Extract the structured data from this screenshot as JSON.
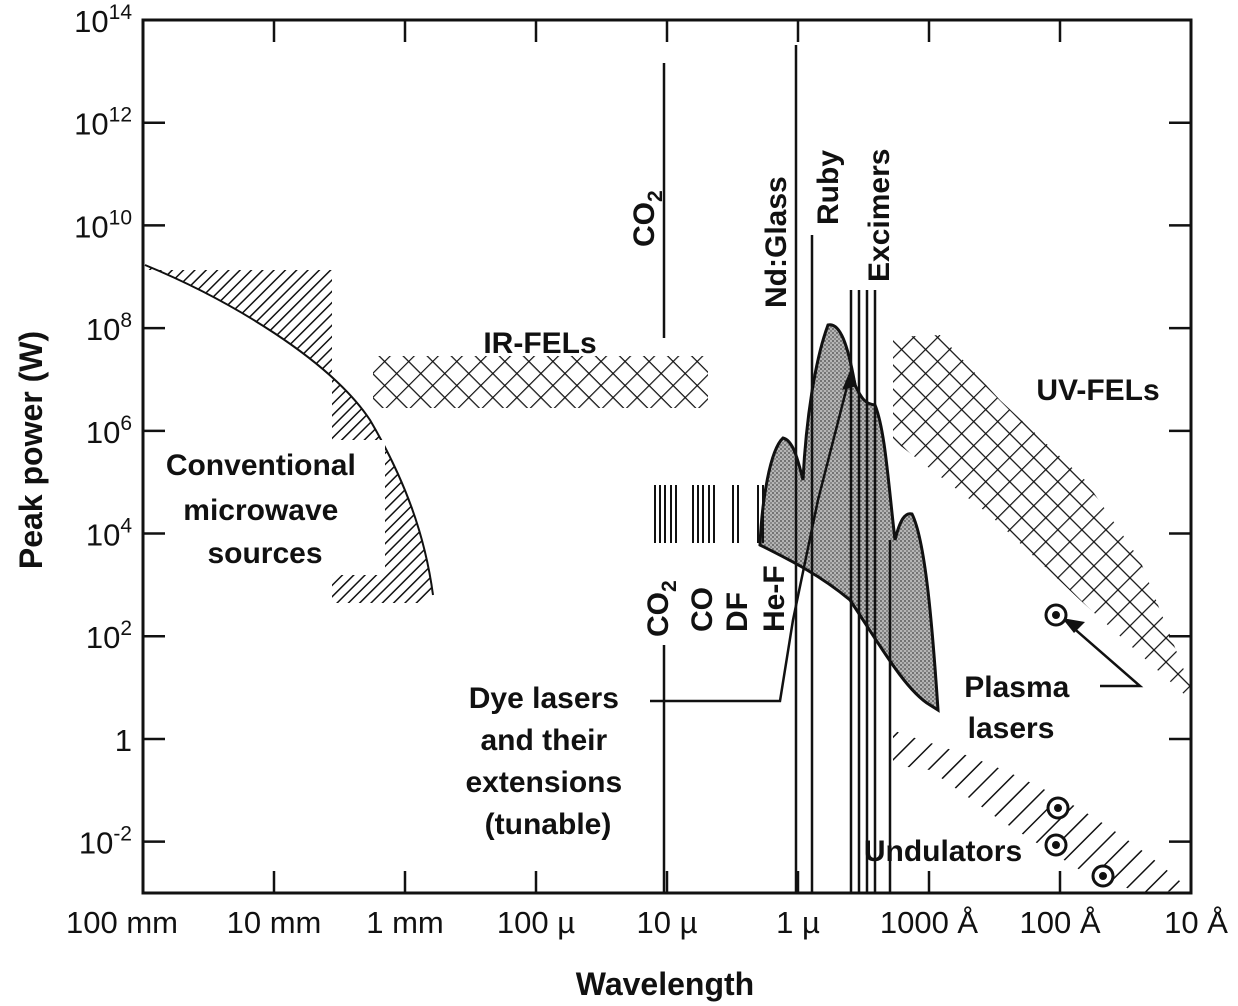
{
  "chart_data": {
    "type": "area",
    "xlabel": "Wavelength",
    "ylabel": "Peak power (W)",
    "x_ticks": [
      "100 mm",
      "10 mm",
      "1 mm",
      "100 µ",
      "10 µ",
      "1 µ",
      "1000 Å",
      "100 Å",
      "10 Å"
    ],
    "y_ticks": [
      {
        "base": "10",
        "exp": "-2"
      },
      {
        "base": "1",
        "exp": ""
      },
      {
        "base": "10",
        "exp": "2"
      },
      {
        "base": "10",
        "exp": "4"
      },
      {
        "base": "10",
        "exp": "6"
      },
      {
        "base": "10",
        "exp": "8"
      },
      {
        "base": "10",
        "exp": "10"
      },
      {
        "base": "10",
        "exp": "12"
      },
      {
        "base": "10",
        "exp": "14"
      }
    ],
    "x_scale": "log (decreasing wavelength, 100 mm to 10 Å)",
    "y_scale": "log",
    "ylim": [
      "10^-3",
      "10^14"
    ],
    "grid": false,
    "regions": [
      {
        "name": "Conventional microwave sources",
        "label_lines": [
          "Conventional",
          "microwave",
          "sources"
        ],
        "style": "hatched"
      },
      {
        "name": "IR-FELs",
        "label": "IR-FELs",
        "style": "cross-hatched"
      },
      {
        "name": "UV-FELs",
        "label": "UV-FELs",
        "style": "cross-hatched"
      },
      {
        "name": "Dye lasers and their extensions (tunable)",
        "label_lines": [
          "Dye lasers",
          "and their",
          "extensions",
          "(tunable)"
        ],
        "style": "stippled"
      },
      {
        "name": "Undulators",
        "label": "Undulators",
        "style": "hatched"
      },
      {
        "name": "Plasma lasers",
        "label_lines": [
          "Plasma",
          "lasers"
        ],
        "style": "points"
      }
    ],
    "line_sources": [
      {
        "label": "CO",
        "sub": "2"
      },
      {
        "label": "Nd:Glass",
        "sub": ""
      },
      {
        "label": "Ruby",
        "sub": ""
      },
      {
        "label": "Excimers",
        "sub": ""
      }
    ],
    "bar_sources": [
      {
        "label": "CO",
        "sub": "2"
      },
      {
        "label": "CO",
        "sub": ""
      },
      {
        "label": "DF",
        "sub": ""
      },
      {
        "label": "He-F",
        "sub": ""
      }
    ]
  }
}
